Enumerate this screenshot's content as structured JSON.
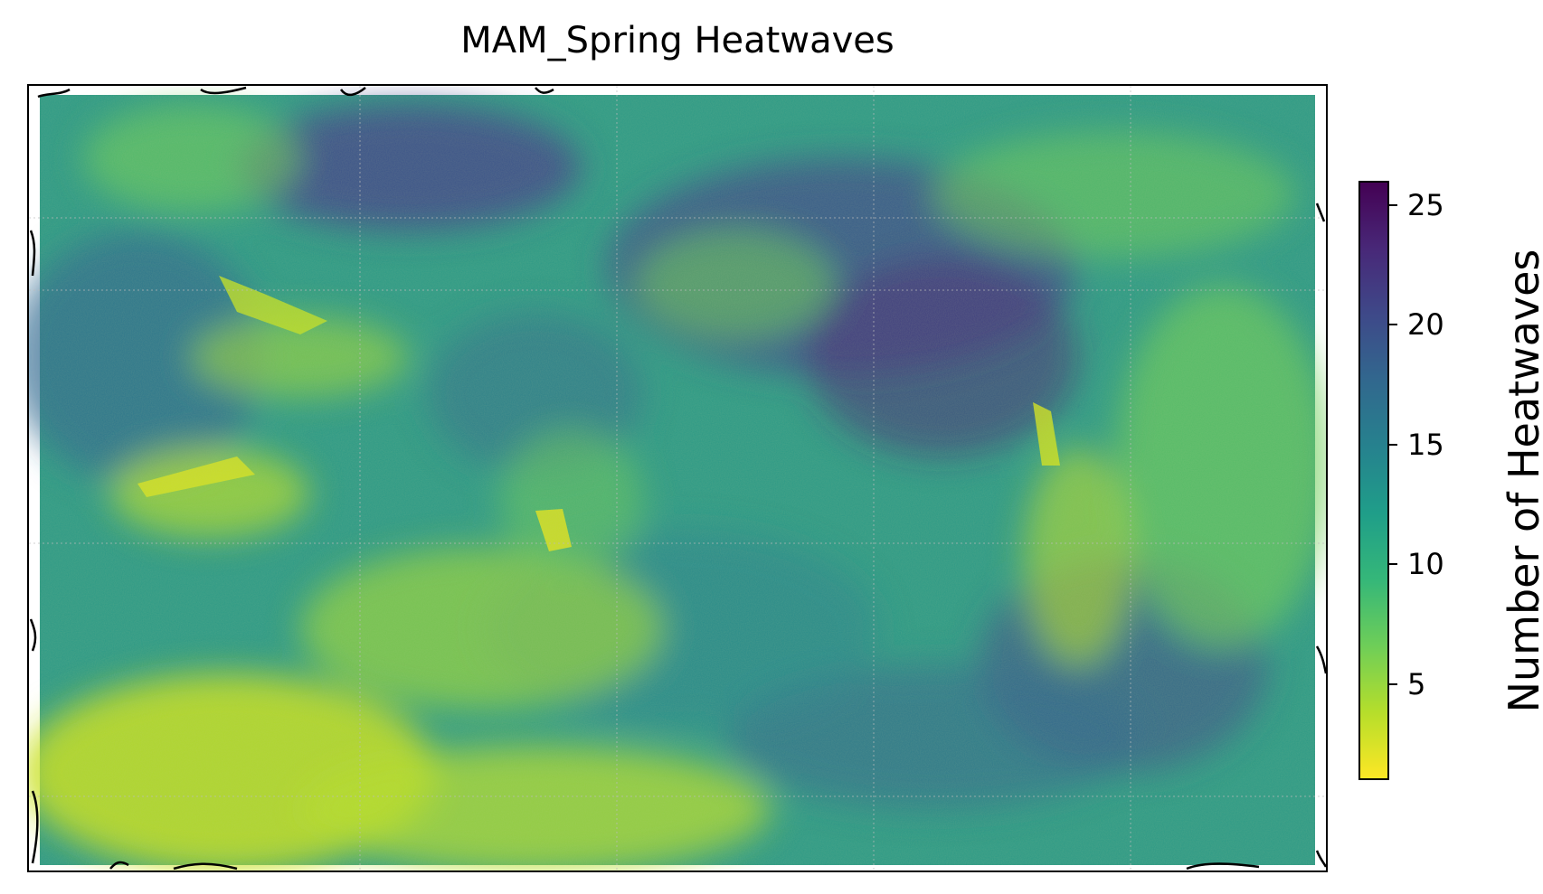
{
  "title": "MAM_Spring Heatwaves",
  "colorbar": {
    "label": "Number of Heatwaves",
    "min": 1,
    "max": 26,
    "ticks": [
      5,
      10,
      15,
      20,
      25
    ],
    "colormap": "viridis_r",
    "colors": [
      "#fde725",
      "#b5de2b",
      "#6ece58",
      "#35b779",
      "#1f9e89",
      "#26828e",
      "#31688e",
      "#3e4989",
      "#482878",
      "#440154"
    ]
  },
  "map": {
    "projection": "PlateCarree",
    "coastlines": true,
    "gridlines": true
  }
}
